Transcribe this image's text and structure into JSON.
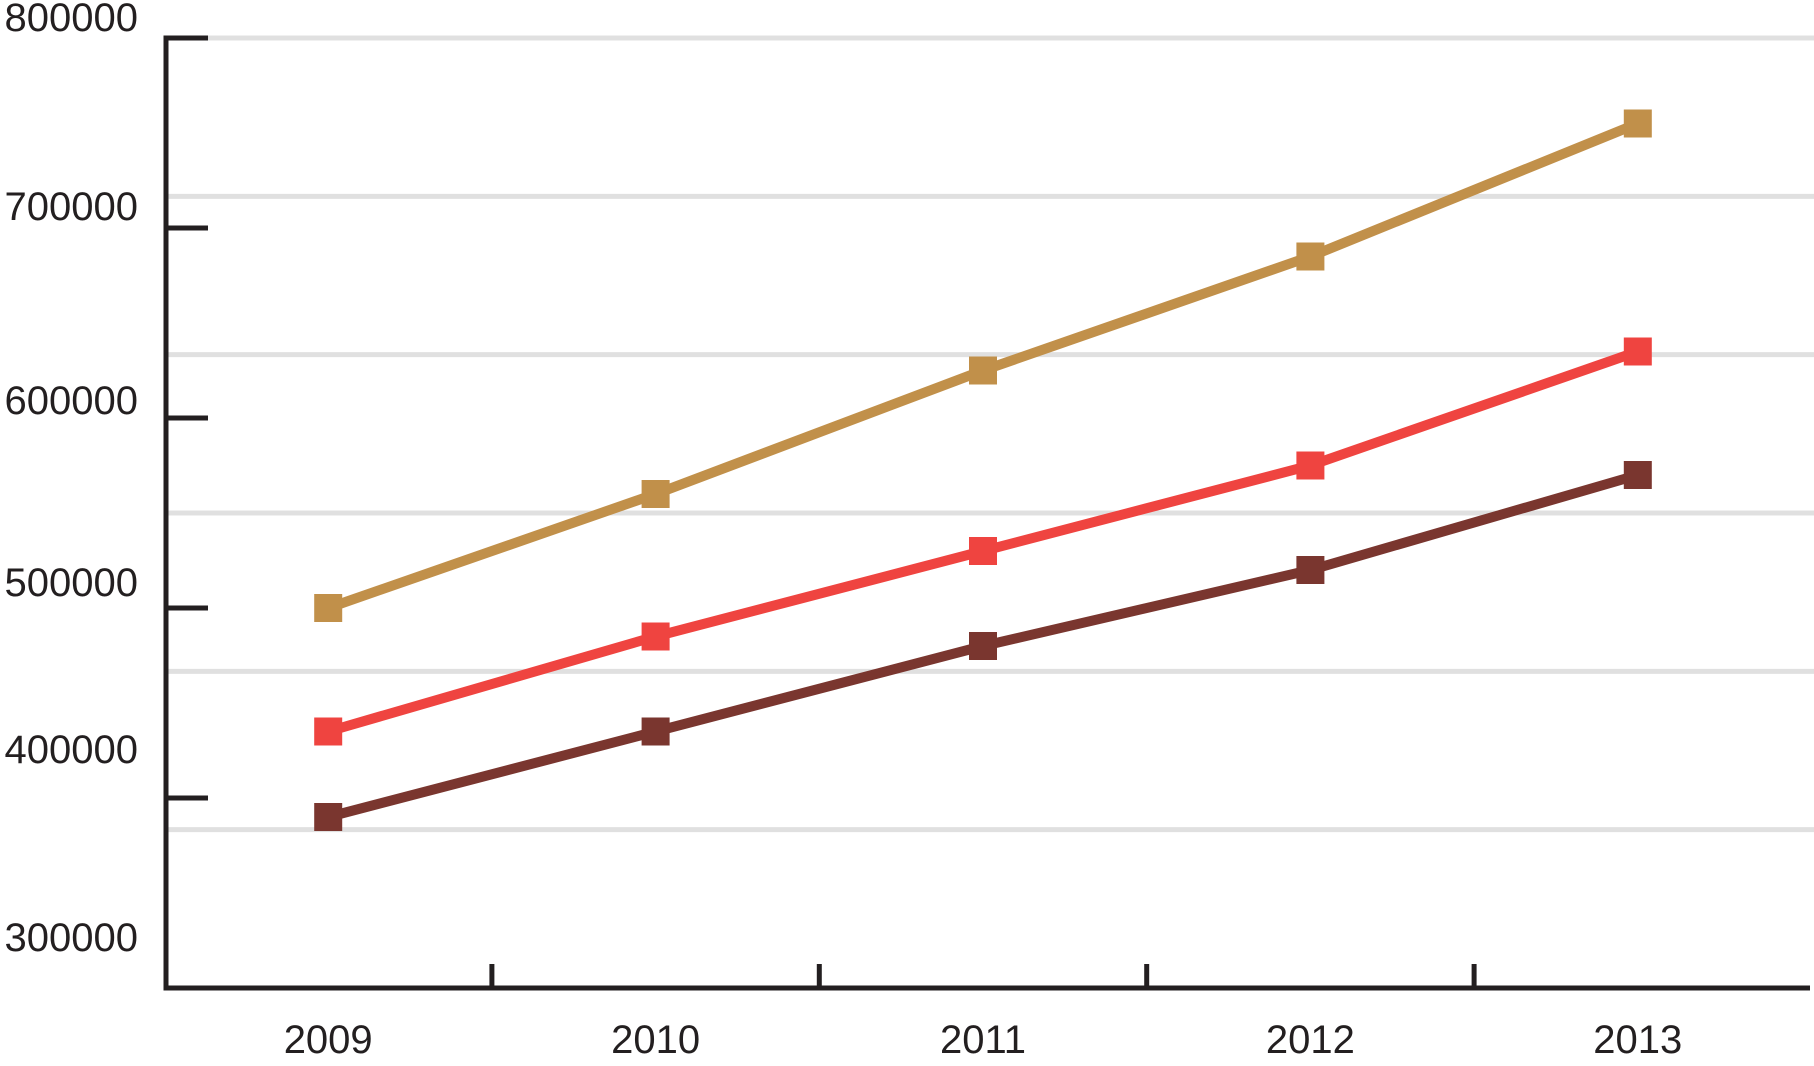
{
  "chart_data": {
    "type": "line",
    "title": "",
    "xlabel": "",
    "ylabel": "",
    "categories": [
      "2009",
      "2010",
      "2011",
      "2012",
      "2013"
    ],
    "series": [
      {
        "name": "gold",
        "color": "#C1904A",
        "values": [
          500000,
          560000,
          625000,
          685000,
          755000
        ]
      },
      {
        "name": "red",
        "color": "#EF4440",
        "values": [
          435000,
          485000,
          530000,
          575000,
          635000
        ]
      },
      {
        "name": "dark-brown",
        "color": "#7A362F",
        "values": [
          390000,
          435000,
          480000,
          520000,
          570000
        ]
      }
    ],
    "y_ticks": [
      800000,
      700000,
      600000,
      500000,
      400000,
      300000
    ],
    "ylim": [
      300000,
      800000
    ],
    "marker": "square",
    "legend": "none",
    "grid": "horizontal"
  },
  "style": {
    "axis_color": "#231f20",
    "grid_color": "#e0e0e0",
    "background": "#ffffff"
  }
}
